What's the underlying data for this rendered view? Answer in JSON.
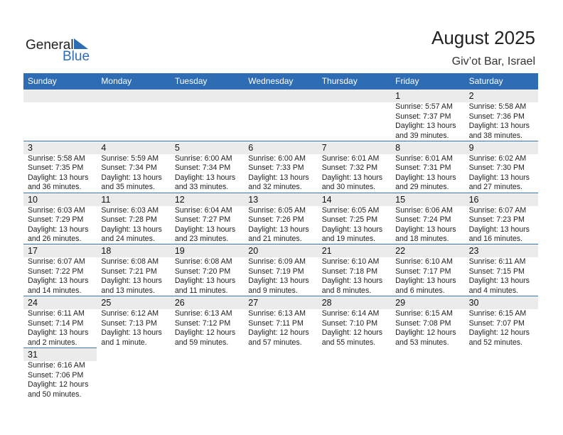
{
  "logo": {
    "text1": "General",
    "text2": "Blue"
  },
  "header": {
    "title": "August 2025",
    "subtitle": "Giv’ot Bar, Israel"
  },
  "weekdays": [
    "Sunday",
    "Monday",
    "Tuesday",
    "Wednesday",
    "Thursday",
    "Friday",
    "Saturday"
  ],
  "weeks": [
    [
      null,
      null,
      null,
      null,
      null,
      {
        "date": "1",
        "lines": [
          "Sunrise: 5:57 AM",
          "Sunset: 7:37 PM",
          "Daylight: 13 hours",
          "and 39 minutes."
        ]
      },
      {
        "date": "2",
        "lines": [
          "Sunrise: 5:58 AM",
          "Sunset: 7:36 PM",
          "Daylight: 13 hours",
          "and 38 minutes."
        ]
      }
    ],
    [
      {
        "date": "3",
        "lines": [
          "Sunrise: 5:58 AM",
          "Sunset: 7:35 PM",
          "Daylight: 13 hours",
          "and 36 minutes."
        ]
      },
      {
        "date": "4",
        "lines": [
          "Sunrise: 5:59 AM",
          "Sunset: 7:34 PM",
          "Daylight: 13 hours",
          "and 35 minutes."
        ]
      },
      {
        "date": "5",
        "lines": [
          "Sunrise: 6:00 AM",
          "Sunset: 7:34 PM",
          "Daylight: 13 hours",
          "and 33 minutes."
        ]
      },
      {
        "date": "6",
        "lines": [
          "Sunrise: 6:00 AM",
          "Sunset: 7:33 PM",
          "Daylight: 13 hours",
          "and 32 minutes."
        ]
      },
      {
        "date": "7",
        "lines": [
          "Sunrise: 6:01 AM",
          "Sunset: 7:32 PM",
          "Daylight: 13 hours",
          "and 30 minutes."
        ]
      },
      {
        "date": "8",
        "lines": [
          "Sunrise: 6:01 AM",
          "Sunset: 7:31 PM",
          "Daylight: 13 hours",
          "and 29 minutes."
        ]
      },
      {
        "date": "9",
        "lines": [
          "Sunrise: 6:02 AM",
          "Sunset: 7:30 PM",
          "Daylight: 13 hours",
          "and 27 minutes."
        ]
      }
    ],
    [
      {
        "date": "10",
        "lines": [
          "Sunrise: 6:03 AM",
          "Sunset: 7:29 PM",
          "Daylight: 13 hours",
          "and 26 minutes."
        ]
      },
      {
        "date": "11",
        "lines": [
          "Sunrise: 6:03 AM",
          "Sunset: 7:28 PM",
          "Daylight: 13 hours",
          "and 24 minutes."
        ]
      },
      {
        "date": "12",
        "lines": [
          "Sunrise: 6:04 AM",
          "Sunset: 7:27 PM",
          "Daylight: 13 hours",
          "and 23 minutes."
        ]
      },
      {
        "date": "13",
        "lines": [
          "Sunrise: 6:05 AM",
          "Sunset: 7:26 PM",
          "Daylight: 13 hours",
          "and 21 minutes."
        ]
      },
      {
        "date": "14",
        "lines": [
          "Sunrise: 6:05 AM",
          "Sunset: 7:25 PM",
          "Daylight: 13 hours",
          "and 19 minutes."
        ]
      },
      {
        "date": "15",
        "lines": [
          "Sunrise: 6:06 AM",
          "Sunset: 7:24 PM",
          "Daylight: 13 hours",
          "and 18 minutes."
        ]
      },
      {
        "date": "16",
        "lines": [
          "Sunrise: 6:07 AM",
          "Sunset: 7:23 PM",
          "Daylight: 13 hours",
          "and 16 minutes."
        ]
      }
    ],
    [
      {
        "date": "17",
        "lines": [
          "Sunrise: 6:07 AM",
          "Sunset: 7:22 PM",
          "Daylight: 13 hours",
          "and 14 minutes."
        ]
      },
      {
        "date": "18",
        "lines": [
          "Sunrise: 6:08 AM",
          "Sunset: 7:21 PM",
          "Daylight: 13 hours",
          "and 13 minutes."
        ]
      },
      {
        "date": "19",
        "lines": [
          "Sunrise: 6:08 AM",
          "Sunset: 7:20 PM",
          "Daylight: 13 hours",
          "and 11 minutes."
        ]
      },
      {
        "date": "20",
        "lines": [
          "Sunrise: 6:09 AM",
          "Sunset: 7:19 PM",
          "Daylight: 13 hours",
          "and 9 minutes."
        ]
      },
      {
        "date": "21",
        "lines": [
          "Sunrise: 6:10 AM",
          "Sunset: 7:18 PM",
          "Daylight: 13 hours",
          "and 8 minutes."
        ]
      },
      {
        "date": "22",
        "lines": [
          "Sunrise: 6:10 AM",
          "Sunset: 7:17 PM",
          "Daylight: 13 hours",
          "and 6 minutes."
        ]
      },
      {
        "date": "23",
        "lines": [
          "Sunrise: 6:11 AM",
          "Sunset: 7:15 PM",
          "Daylight: 13 hours",
          "and 4 minutes."
        ]
      }
    ],
    [
      {
        "date": "24",
        "lines": [
          "Sunrise: 6:11 AM",
          "Sunset: 7:14 PM",
          "Daylight: 13 hours",
          "and 2 minutes."
        ]
      },
      {
        "date": "25",
        "lines": [
          "Sunrise: 6:12 AM",
          "Sunset: 7:13 PM",
          "Daylight: 13 hours",
          "and 1 minute."
        ]
      },
      {
        "date": "26",
        "lines": [
          "Sunrise: 6:13 AM",
          "Sunset: 7:12 PM",
          "Daylight: 12 hours",
          "and 59 minutes."
        ]
      },
      {
        "date": "27",
        "lines": [
          "Sunrise: 6:13 AM",
          "Sunset: 7:11 PM",
          "Daylight: 12 hours",
          "and 57 minutes."
        ]
      },
      {
        "date": "28",
        "lines": [
          "Sunrise: 6:14 AM",
          "Sunset: 7:10 PM",
          "Daylight: 12 hours",
          "and 55 minutes."
        ]
      },
      {
        "date": "29",
        "lines": [
          "Sunrise: 6:15 AM",
          "Sunset: 7:08 PM",
          "Daylight: 12 hours",
          "and 53 minutes."
        ]
      },
      {
        "date": "30",
        "lines": [
          "Sunrise: 6:15 AM",
          "Sunset: 7:07 PM",
          "Daylight: 12 hours",
          "and 52 minutes."
        ]
      }
    ],
    [
      {
        "date": "31",
        "lines": [
          "Sunrise: 6:16 AM",
          "Sunset: 7:06 PM",
          "Daylight: 12 hours",
          "and 50 minutes."
        ]
      }
    ]
  ]
}
